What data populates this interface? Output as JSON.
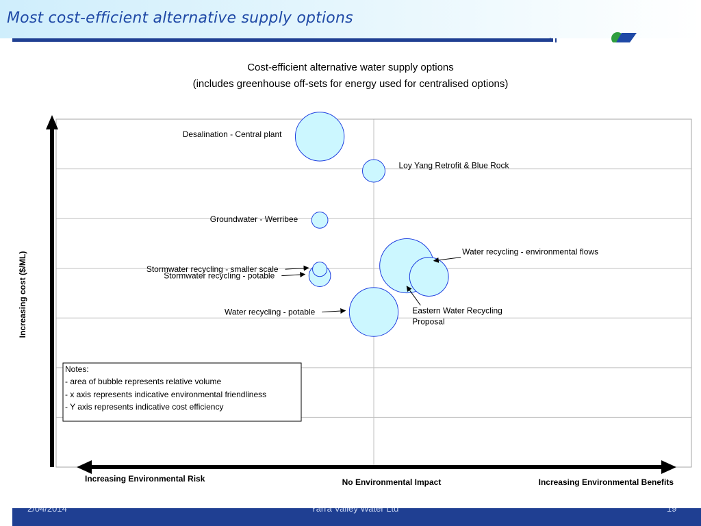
{
  "slide": {
    "title": "Most cost-efficient alternative supply options",
    "footer": {
      "date": "2/04/2014",
      "company": "Yarra Valley Water Ltd",
      "page": "19"
    }
  },
  "colors": {
    "title_text": "#1f49a6",
    "header_rule": "#1f3f92",
    "footer_bar": "#1f3f92",
    "bubble_fill": "#ccf7ff",
    "bubble_stroke": "#1f3fe0"
  },
  "chart_data": {
    "type": "bubble",
    "title": "Cost-efficient alternative water supply options",
    "subtitle": "(includes greenhouse off-sets for energy used for centralised options)",
    "ylabel": "Increasing cost ($/ML)",
    "x_labels": {
      "left": "Increasing Environmental Risk",
      "center": "No Environmental Impact",
      "right": "Increasing Environmental Benefits"
    },
    "xlim": [
      -5,
      5
    ],
    "ylim": [
      0,
      7
    ],
    "grid": true,
    "bubble_area_scale": "relative",
    "notes": [
      "Notes:",
      "- area of bubble represents relative volume",
      "- x axis represents indicative environmental friendliness",
      "- Y axis represents indicative cost efficiency"
    ],
    "points": [
      {
        "label": "Desalination - Central plant",
        "x": -0.85,
        "y": 6.65,
        "size": 29.2,
        "label_pos": "left"
      },
      {
        "label": "Loy Yang Retrofit & Blue Rock",
        "x": 0.0,
        "y": 5.96,
        "size": 6.25,
        "label_pos": "right"
      },
      {
        "label": "Groundwater - Werribee",
        "x": -0.85,
        "y": 4.97,
        "size": 3.24,
        "label_pos": "left"
      },
      {
        "label": "Stormwater recycling - smaller scale",
        "x": -0.85,
        "y": 3.98,
        "size": 2.56,
        "label_pos": "left"
      },
      {
        "label": "Stormwater recycling - potable",
        "x": -0.85,
        "y": 3.85,
        "size": 5.76,
        "label_pos": "left"
      },
      {
        "label": "Water recycling - potable",
        "x": 0.0,
        "y": 3.12,
        "size": 29.2,
        "label_pos": "left"
      },
      {
        "label": "Water recycling - environmental flows",
        "x": 0.87,
        "y": 3.83,
        "size": 18.5,
        "label_pos": "right"
      },
      {
        "label": "Eastern Water Recycling Proposal",
        "x": 0.52,
        "y": 4.05,
        "size": 36.0,
        "label_pos": "below"
      }
    ]
  }
}
